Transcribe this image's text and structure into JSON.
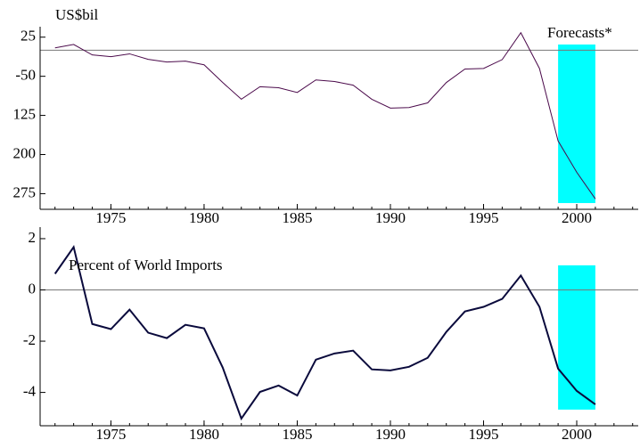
{
  "chart_data": [
    {
      "type": "line",
      "y_label": "US$bil",
      "annotation": "Forecasts*",
      "x": [
        1972,
        1973,
        1974,
        1975,
        1976,
        1977,
        1978,
        1979,
        1980,
        1981,
        1982,
        1983,
        1984,
        1985,
        1986,
        1987,
        1988,
        1989,
        1990,
        1991,
        1992,
        1993,
        1994,
        1995,
        1996,
        1997,
        1998,
        1999,
        2000,
        2001
      ],
      "series": [
        {
          "color": "#4b0a4b",
          "values": [
            4.5,
            11,
            -9,
            -12.5,
            -7,
            -17.6,
            -22.7,
            -21,
            -28,
            -62,
            -94,
            -70,
            -72,
            -81,
            -57,
            -60,
            -67,
            -94,
            -111,
            -110,
            -101,
            -62,
            -36,
            -35,
            -18,
            33.5,
            -35,
            -174,
            -234,
            -285
          ]
        }
      ],
      "xlim": [
        1971.2,
        2003.3
      ],
      "xticks": [
        1975,
        1980,
        1985,
        1990,
        1995,
        2000
      ],
      "ylim": [
        -305,
        45
      ],
      "yticks": [
        25,
        -50,
        {
          "value": -125,
          "label": "125"
        },
        {
          "value": -200,
          "label": "200"
        },
        {
          "value": -275,
          "label": "275"
        }
      ],
      "reference_line": 0,
      "shade": {
        "x": [
          1999,
          2001
        ],
        "y": [
          10.9,
          -293
        ],
        "color": "#00ffff"
      }
    },
    {
      "type": "line",
      "annotation": "Percent of World Imports",
      "x": [
        1972,
        1973,
        1974,
        1975,
        1976,
        1977,
        1978,
        1979,
        1980,
        1981,
        1982,
        1983,
        1984,
        1985,
        1986,
        1987,
        1988,
        1989,
        1990,
        1991,
        1992,
        1993,
        1994,
        1995,
        1996,
        1997,
        1998,
        1999,
        2000,
        2001
      ],
      "series": [
        {
          "color": "#0a0a3c",
          "values": [
            0.63,
            1.67,
            -1.33,
            -1.53,
            -0.77,
            -1.67,
            -1.88,
            -1.36,
            -1.5,
            -3.03,
            -5.02,
            -3.98,
            -3.73,
            -4.12,
            -2.72,
            -2.48,
            -2.37,
            -3.1,
            -3.14,
            -3,
            -2.65,
            -1.64,
            -0.84,
            -0.66,
            -0.35,
            0.56,
            -0.66,
            -3.07,
            -3.94,
            -4.47
          ]
        }
      ],
      "xlim": [
        1971.2,
        2003.3
      ],
      "xticks": [
        1975,
        1980,
        1985,
        1990,
        1995,
        2000
      ],
      "ylim": [
        -5.3,
        2.45
      ],
      "yticks": [
        2,
        0,
        -2,
        -4
      ],
      "reference_line": 0,
      "shade": {
        "x": [
          1999,
          2001
        ],
        "y": [
          0.96,
          -4.67
        ],
        "color": "#00ffff"
      }
    }
  ]
}
